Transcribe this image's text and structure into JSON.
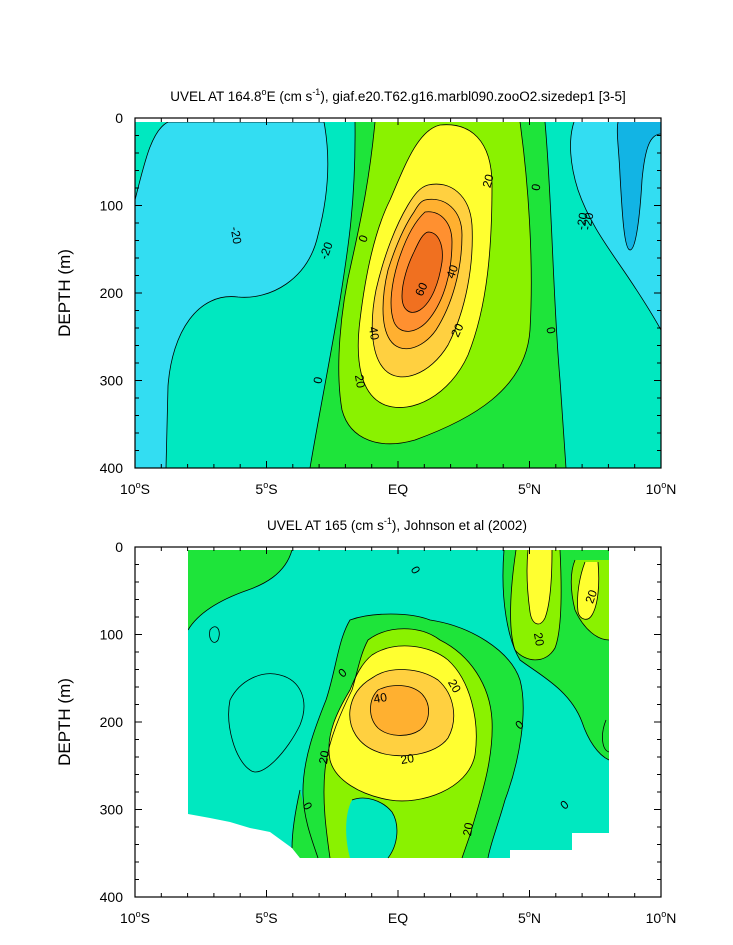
{
  "chart_data": [
    {
      "type": "heatmap",
      "title_main": "UVEL AT 164.8",
      "title_deg": "o",
      "title_mid": "E (cm s",
      "title_sup": "-1",
      "title_rest": "), giaf.e20.T62.g16.marbl090.zooO2.sizedep1 [3-5]",
      "ylabel": "DEPTH (m)",
      "xlim": [
        -10,
        10
      ],
      "ylim": [
        0,
        400
      ],
      "x_ticks": [
        {
          "num": "10",
          "sup": "o",
          "suf": "S"
        },
        {
          "num": "5",
          "sup": "o",
          "suf": "S"
        },
        {
          "num": "EQ",
          "sup": "",
          "suf": ""
        },
        {
          "num": "5",
          "sup": "o",
          "suf": "N"
        },
        {
          "num": "10",
          "sup": "o",
          "suf": "N"
        }
      ],
      "y_ticks": [
        "0",
        "100",
        "200",
        "300",
        "400"
      ],
      "contour_levels": [
        -30,
        -20,
        -10,
        0,
        10,
        20,
        30,
        40,
        50,
        60
      ],
      "colors": [
        "#12b4e4",
        "#33ddf2",
        "#00e8c0",
        "#1ee43a",
        "#8af200",
        "#ffff30",
        "#ffd040",
        "#ffb030",
        "#ff9030",
        "#f07020"
      ],
      "contour_labels": [
        "-20",
        "-20",
        "-20",
        "-20",
        "0",
        "0",
        "0",
        "0",
        "20",
        "20",
        "20",
        "40",
        "40",
        "60"
      ],
      "core": {
        "lat": 1.3,
        "depth": 190,
        "max_speed": 65
      }
    },
    {
      "type": "heatmap",
      "title_main": "UVEL AT 165 (cm s",
      "title_sup": "-1",
      "title_rest": "), Johnson et al (2002)",
      "ylabel": "DEPTH (m)",
      "xlim": [
        -10,
        10
      ],
      "ylim": [
        0,
        400
      ],
      "data_lat_range": [
        -8,
        8
      ],
      "x_ticks": [
        {
          "num": "10",
          "sup": "o",
          "suf": "S"
        },
        {
          "num": "5",
          "sup": "o",
          "suf": "S"
        },
        {
          "num": "EQ",
          "sup": "",
          "suf": ""
        },
        {
          "num": "5",
          "sup": "o",
          "suf": "N"
        },
        {
          "num": "10",
          "sup": "o",
          "suf": "N"
        }
      ],
      "y_ticks": [
        "0",
        "100",
        "200",
        "300",
        "400"
      ],
      "contour_levels": [
        -10,
        0,
        10,
        20,
        30,
        40
      ],
      "colors": [
        "#00e8c0",
        "#1ee43a",
        "#8af200",
        "#ffff30",
        "#ffd040",
        "#ffb030"
      ],
      "contour_labels": [
        "0",
        "0",
        "0",
        "0",
        "0",
        "20",
        "20",
        "20",
        "20",
        "20",
        "20",
        "40"
      ],
      "core": {
        "lat": 0,
        "depth": 185,
        "max_speed": 45
      }
    }
  ]
}
